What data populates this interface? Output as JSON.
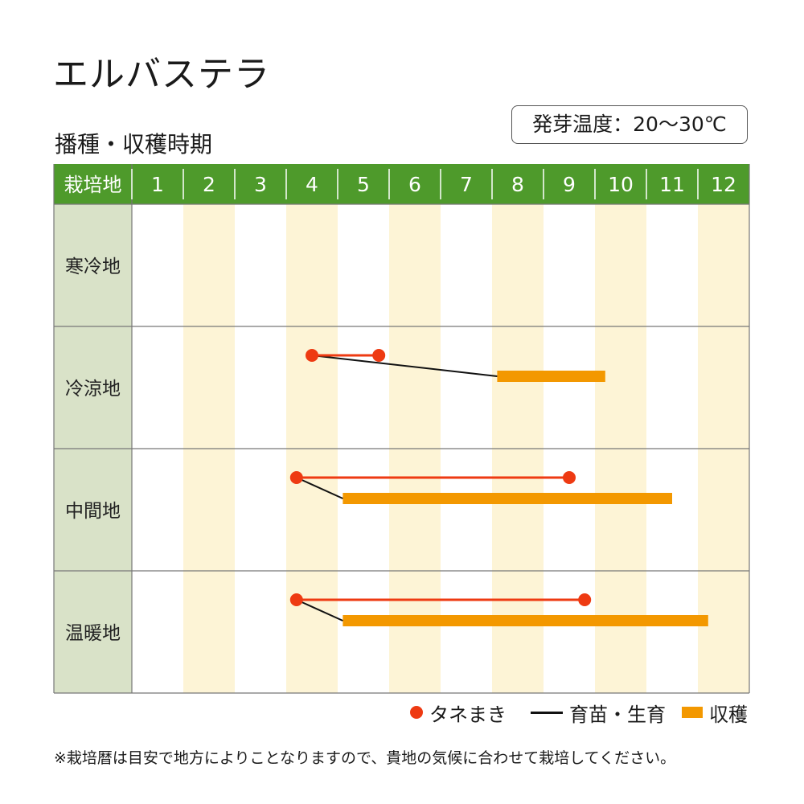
{
  "title": "エルバステラ",
  "subtitle": "播種・収穫時期",
  "badge": "発芽温度：20～30℃",
  "legend": {
    "sowing": "タネまき",
    "nursery": "育苗・生育",
    "harvest": "収穫"
  },
  "note": "※栽培暦は目安で地方によりことなりますので、貴地の気候に合わせて栽培してください。",
  "colors": {
    "header_bg": "#4e9a2b",
    "row_label_bg": "#d9e2c8",
    "stripe": "#fdf4d6",
    "sowing": "#ee3a12",
    "nursery": "#111111",
    "harvest": "#f39800"
  },
  "chart_data": {
    "type": "gantt",
    "corner_label": "栽培地",
    "months": [
      "1",
      "2",
      "3",
      "4",
      "5",
      "6",
      "7",
      "8",
      "9",
      "10",
      "11",
      "12"
    ],
    "rows": [
      {
        "region": "寒冷地",
        "sowing": null,
        "growth": null,
        "harvest": null
      },
      {
        "region": "冷涼地",
        "sowing": [
          4.5,
          5.8
        ],
        "growth": [
          4.5,
          8.1
        ],
        "harvest": [
          8.1,
          10.2
        ]
      },
      {
        "region": "中間地",
        "sowing": [
          4.2,
          9.5
        ],
        "growth": [
          4.2,
          5.1
        ],
        "harvest": [
          5.1,
          11.5
        ]
      },
      {
        "region": "温暖地",
        "sowing": [
          4.2,
          9.8
        ],
        "growth": [
          4.2,
          5.1
        ],
        "harvest": [
          5.1,
          12.2
        ]
      }
    ]
  }
}
